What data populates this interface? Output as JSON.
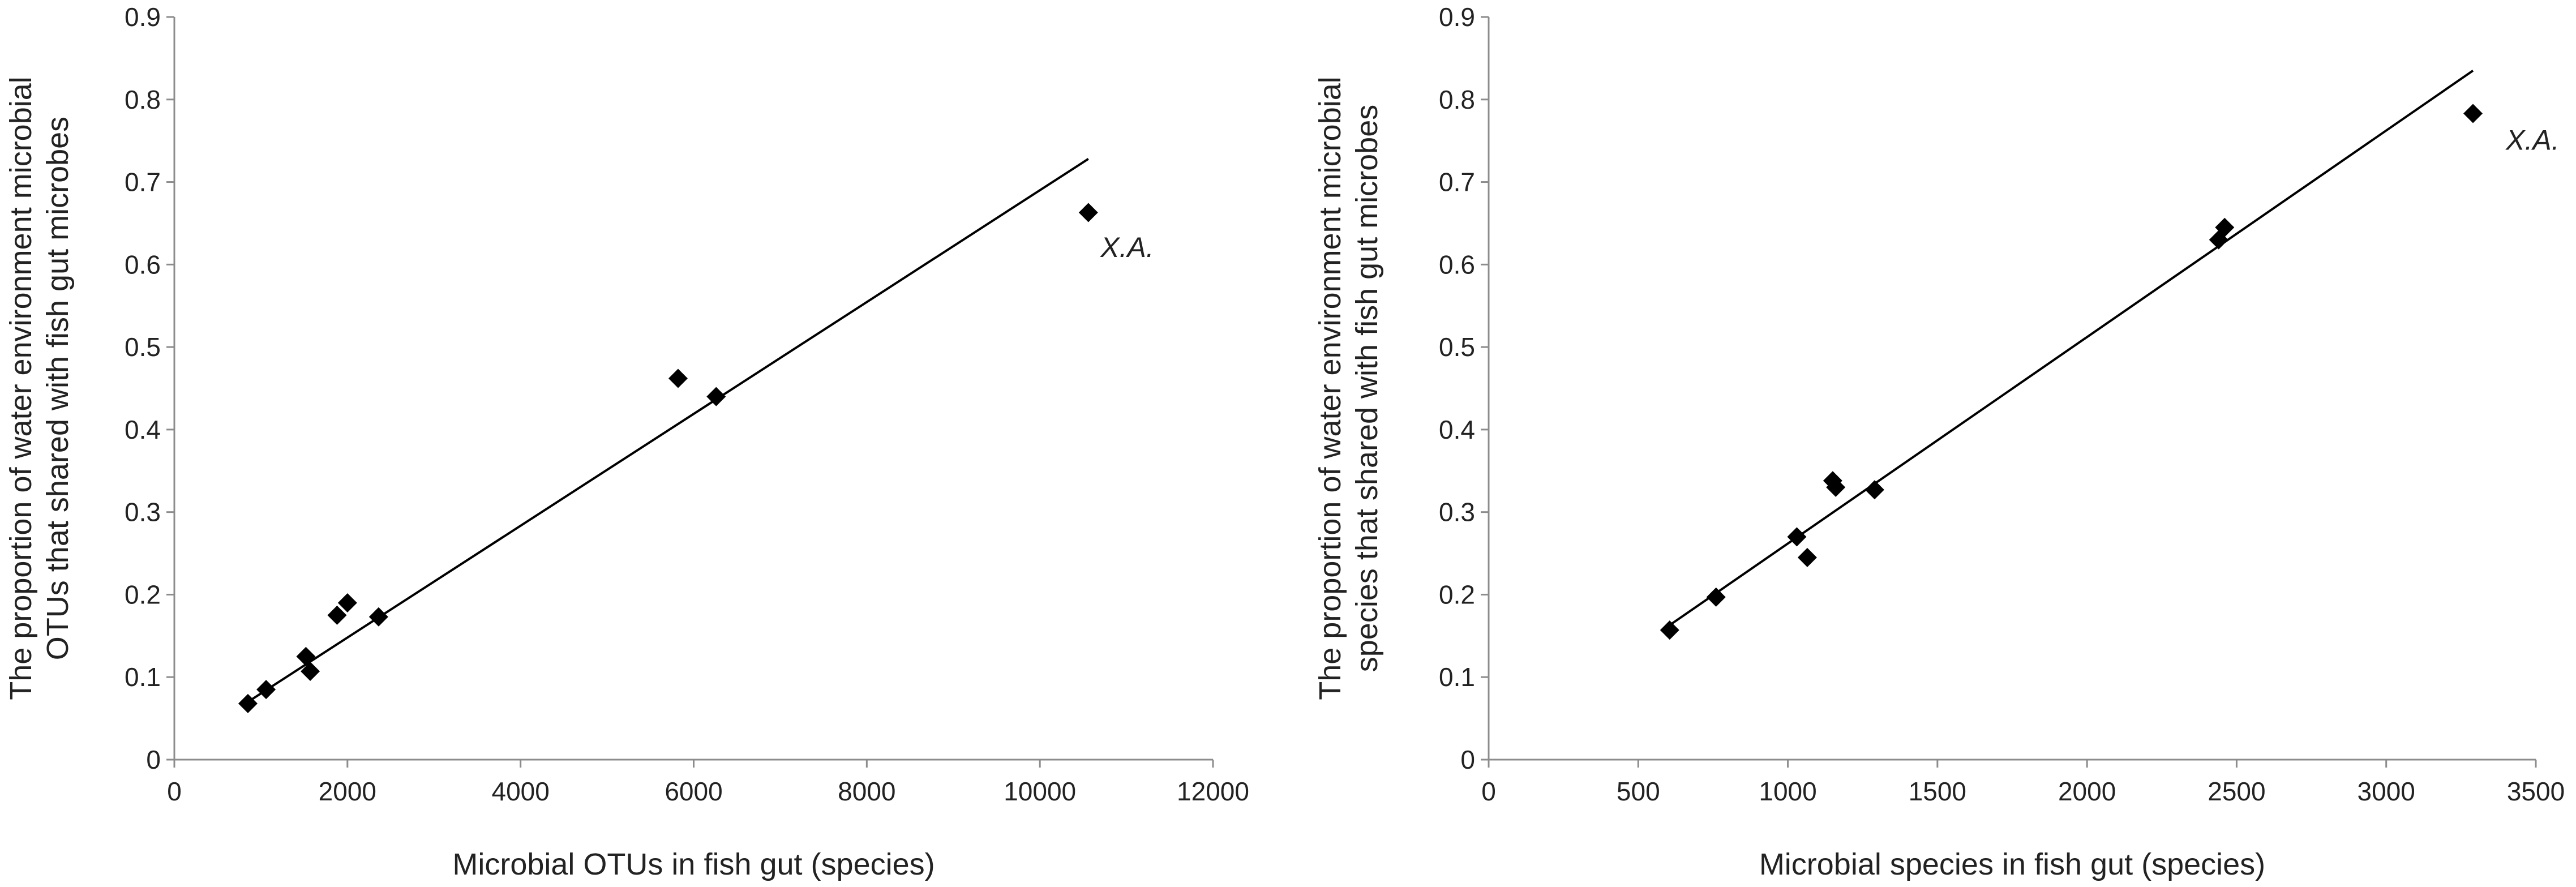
{
  "chart_data": [
    {
      "type": "scatter",
      "xlabel": "Microbial OTUs in fish gut (species)",
      "ylabel": [
        "The proportion of water environment microbial",
        "OTUs that shared with fish gut microbes"
      ],
      "xlim": [
        0,
        12000
      ],
      "ylim": [
        0,
        0.9
      ],
      "xticks": [
        "0",
        "2000",
        "4000",
        "6000",
        "8000",
        "10000",
        "12000"
      ],
      "yticks": [
        "0",
        "0.1",
        "0.2",
        "0.3",
        "0.4",
        "0.5",
        "0.6",
        "0.7",
        "0.8",
        "0.9"
      ],
      "grid": false,
      "marker": "diamond",
      "marker_color": "#000000",
      "points": [
        {
          "x": 850,
          "y": 0.068
        },
        {
          "x": 1060,
          "y": 0.085
        },
        {
          "x": 1520,
          "y": 0.125
        },
        {
          "x": 1570,
          "y": 0.107
        },
        {
          "x": 1880,
          "y": 0.175
        },
        {
          "x": 2000,
          "y": 0.19
        },
        {
          "x": 2360,
          "y": 0.173
        },
        {
          "x": 5820,
          "y": 0.462
        },
        {
          "x": 6260,
          "y": 0.44
        },
        {
          "x": 10560,
          "y": 0.663
        }
      ],
      "trendline": {
        "x": [
          850,
          10560
        ],
        "y": [
          0.07,
          0.728
        ]
      },
      "annotations": [
        {
          "text": "X.A.",
          "x": 10700,
          "y": 0.62
        }
      ]
    },
    {
      "type": "scatter",
      "xlabel": "Microbial species in fish gut (species)",
      "ylabel": [
        "The proportion of water environment microbial",
        "species that shared with fish gut microbes"
      ],
      "xlim": [
        0,
        3500
      ],
      "ylim": [
        0,
        0.9
      ],
      "xticks": [
        "0",
        "500",
        "1000",
        "1500",
        "2000",
        "2500",
        "3000",
        "3500"
      ],
      "yticks": [
        "0",
        "0.1",
        "0.2",
        "0.3",
        "0.4",
        "0.5",
        "0.6",
        "0.7",
        "0.8",
        "0.9"
      ],
      "grid": false,
      "marker": "diamond",
      "marker_color": "#000000",
      "points": [
        {
          "x": 605,
          "y": 0.157
        },
        {
          "x": 760,
          "y": 0.197
        },
        {
          "x": 1030,
          "y": 0.27
        },
        {
          "x": 1065,
          "y": 0.245
        },
        {
          "x": 1150,
          "y": 0.338
        },
        {
          "x": 1160,
          "y": 0.33
        },
        {
          "x": 1290,
          "y": 0.327
        },
        {
          "x": 2440,
          "y": 0.63
        },
        {
          "x": 2460,
          "y": 0.645
        },
        {
          "x": 3290,
          "y": 0.783
        }
      ],
      "trendline": {
        "x": [
          605,
          3290
        ],
        "y": [
          0.163,
          0.835
        ]
      },
      "annotations": [
        {
          "text": "X.A.",
          "x": 3400,
          "y": 0.75
        }
      ]
    }
  ]
}
